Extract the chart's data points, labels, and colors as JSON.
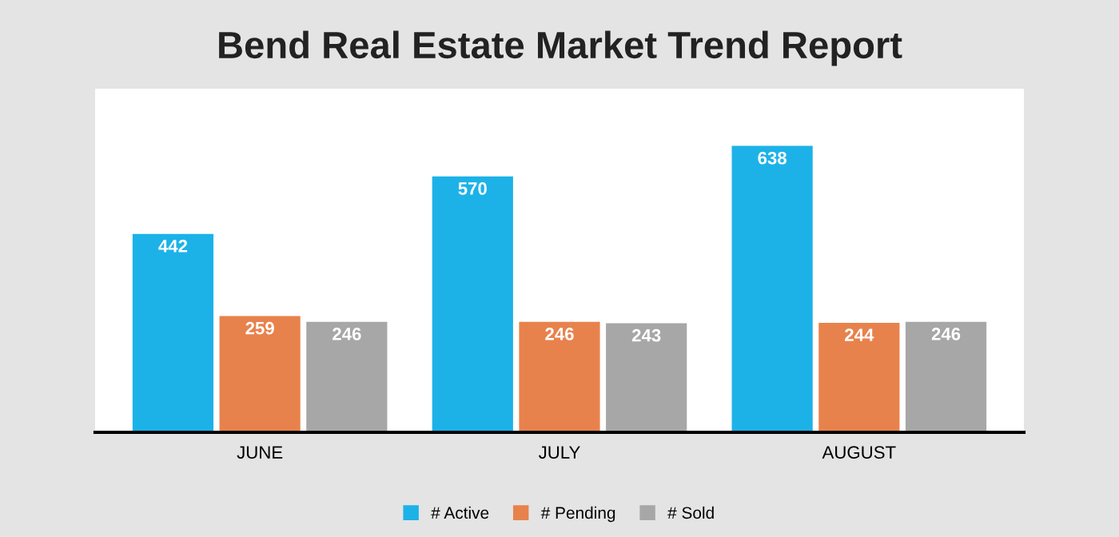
{
  "chart_data": {
    "type": "bar",
    "title": "Bend Real Estate Market Trend Report",
    "categories": [
      "JUNE",
      "JULY",
      "AUGUST"
    ],
    "series": [
      {
        "name": "# Active",
        "color": "#1cb2e8",
        "values": [
          442,
          570,
          638
        ]
      },
      {
        "name": "# Pending",
        "color": "#e8824c",
        "values": [
          259,
          246,
          244
        ]
      },
      {
        "name": "# Sold",
        "color": "#a7a7a7",
        "values": [
          246,
          243,
          246
        ]
      }
    ],
    "data_labels": true,
    "legend": "bottom",
    "grid": false
  }
}
